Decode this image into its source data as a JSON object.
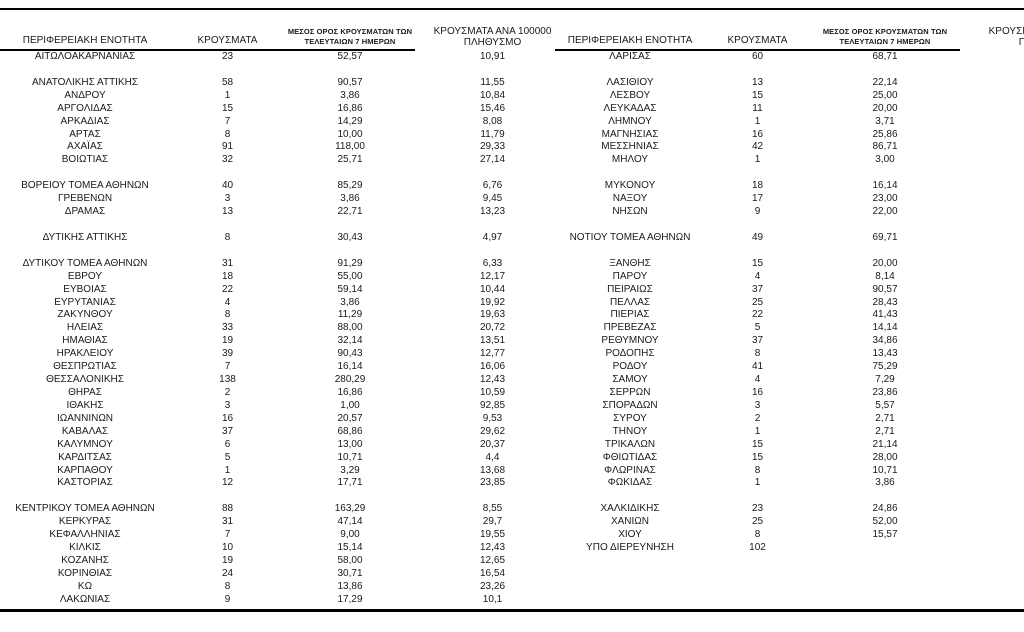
{
  "page": {
    "background": "#ffffff",
    "border_color": "#000000",
    "text_color": "#1a1a1a"
  },
  "headers": {
    "region": "ΠΕΡΙΦΕΡΕΙΑΚΗ ΕΝΟΤΗΤΑ",
    "cases": "ΚΡΟΥΣΜΑΤΑ",
    "avg7_line1": "ΜΕΣΟΣ ΟΡΟΣ ΚΡΟΥΣΜΑΤΩΝ ΤΩΝ",
    "avg7_line2": "ΤΕΛΕΥΤΑΙΩΝ 7 ΗΜΕΡΩΝ",
    "per100k_line1": "ΚΡΟΥΣΜΑΤΑ ΑΝΑ 100000",
    "per100k_line2": "ΠΛΗΘΥΣΜΟ"
  },
  "left_table": {
    "rows": [
      [
        "ΑΙΤΩΛΟΑΚΑΡΝΑΝΙΑΣ",
        "23",
        "52,57",
        "10,91"
      ],
      [
        "",
        "",
        "",
        ""
      ],
      [
        "ΑΝΑΤΟΛΙΚΗΣ ΑΤΤΙΚΗΣ",
        "58",
        "90,57",
        "11,55"
      ],
      [
        "ΑΝΔΡΟΥ",
        "1",
        "3,86",
        "10,84"
      ],
      [
        "ΑΡΓΟΛΙΔΑΣ",
        "15",
        "16,86",
        "15,46"
      ],
      [
        "ΑΡΚΑΔΙΑΣ",
        "7",
        "14,29",
        "8,08"
      ],
      [
        "ΑΡΤΑΣ",
        "8",
        "10,00",
        "11,79"
      ],
      [
        "ΑΧΑΪΑΣ",
        "91",
        "118,00",
        "29,33"
      ],
      [
        "ΒΟΙΩΤΙΑΣ",
        "32",
        "25,71",
        "27,14"
      ],
      [
        "",
        "",
        "",
        ""
      ],
      [
        "ΒΟΡΕΙΟΥ ΤΟΜΕΑ ΑΘΗΝΩΝ",
        "40",
        "85,29",
        "6,76"
      ],
      [
        "ΓΡΕΒΕΝΩΝ",
        "3",
        "3,86",
        "9,45"
      ],
      [
        "ΔΡΑΜΑΣ",
        "13",
        "22,71",
        "13,23"
      ],
      [
        "",
        "",
        "",
        ""
      ],
      [
        "ΔΥΤΙΚΗΣ ΑΤΤΙΚΗΣ",
        "8",
        "30,43",
        "4,97"
      ],
      [
        "",
        "",
        "",
        ""
      ],
      [
        "ΔΥΤΙΚΟΥ ΤΟΜΕΑ ΑΘΗΝΩΝ",
        "31",
        "91,29",
        "6,33"
      ],
      [
        "ΕΒΡΟΥ",
        "18",
        "55,00",
        "12,17"
      ],
      [
        "ΕΥΒΟΙΑΣ",
        "22",
        "59,14",
        "10,44"
      ],
      [
        "ΕΥΡΥΤΑΝΙΑΣ",
        "4",
        "3,86",
        "19,92"
      ],
      [
        "ΖΑΚΥΝΘΟΥ",
        "8",
        "11,29",
        "19,63"
      ],
      [
        "ΗΛΕΙΑΣ",
        "33",
        "88,00",
        "20,72"
      ],
      [
        "ΗΜΑΘΙΑΣ",
        "19",
        "32,14",
        "13,51"
      ],
      [
        "ΗΡΑΚΛΕΙΟΥ",
        "39",
        "90,43",
        "12,77"
      ],
      [
        "ΘΕΣΠΡΩΤΙΑΣ",
        "7",
        "16,14",
        "16,06"
      ],
      [
        "ΘΕΣΣΑΛΟΝΙΚΗΣ",
        "138",
        "280,29",
        "12,43"
      ],
      [
        "ΘΗΡΑΣ",
        "2",
        "16,86",
        "10,59"
      ],
      [
        "ΙΘΑΚΗΣ",
        "3",
        "1,00",
        "92,85"
      ],
      [
        "ΙΩΑΝΝΙΝΩΝ",
        "16",
        "20,57",
        "9,53"
      ],
      [
        "ΚΑΒΑΛΑΣ",
        "37",
        "68,86",
        "29,62"
      ],
      [
        "ΚΑΛΥΜΝΟΥ",
        "6",
        "13,00",
        "20,37"
      ],
      [
        "ΚΑΡΔΙΤΣΑΣ",
        "5",
        "10,71",
        "4,4"
      ],
      [
        "ΚΑΡΠΑΘΟΥ",
        "1",
        "3,29",
        "13,68"
      ],
      [
        "ΚΑΣΤΟΡΙΑΣ",
        "12",
        "17,71",
        "23,85"
      ],
      [
        "",
        "",
        "",
        ""
      ],
      [
        "ΚΕΝΤΡΙΚΟΥ ΤΟΜΕΑ ΑΘΗΝΩΝ",
        "88",
        "163,29",
        "8,55"
      ],
      [
        "ΚΕΡΚΥΡΑΣ",
        "31",
        "47,14",
        "29,7"
      ],
      [
        "ΚΕΦΑΛΛΗΝΙΑΣ",
        "7",
        "9,00",
        "19,55"
      ],
      [
        "ΚΙΛΚΙΣ",
        "10",
        "15,14",
        "12,43"
      ],
      [
        "ΚΟΖΑΝΗΣ",
        "19",
        "58,00",
        "12,65"
      ],
      [
        "ΚΟΡΙΝΘΙΑΣ",
        "24",
        "30,71",
        "16,54"
      ],
      [
        "ΚΩ",
        "8",
        "13,86",
        "23,26"
      ],
      [
        "ΛΑΚΩΝΙΑΣ",
        "9",
        "17,29",
        "10,1"
      ]
    ]
  },
  "right_table": {
    "rows": [
      [
        "ΛΑΡΙΣΑΣ",
        "60",
        "68,71"
      ],
      [
        "",
        "",
        ""
      ],
      [
        "ΛΑΣΙΘΙΟΥ",
        "13",
        "22,14"
      ],
      [
        "ΛΕΣΒΟΥ",
        "15",
        "25,00"
      ],
      [
        "ΛΕΥΚΑΔΑΣ",
        "11",
        "20,00"
      ],
      [
        "ΛΗΜΝΟΥ",
        "1",
        "3,71"
      ],
      [
        "ΜΑΓΝΗΣΙΑΣ",
        "16",
        "25,86"
      ],
      [
        "ΜΕΣΣΗΝΙΑΣ",
        "42",
        "86,71"
      ],
      [
        "ΜΗΛΟΥ",
        "1",
        "3,00"
      ],
      [
        "",
        "",
        ""
      ],
      [
        "ΜΥΚΟΝΟΥ",
        "18",
        "16,14"
      ],
      [
        "ΝΑΞΟΥ",
        "17",
        "23,00"
      ],
      [
        "ΝΗΣΩΝ",
        "9",
        "22,00"
      ],
      [
        "",
        "",
        ""
      ],
      [
        "ΝΟΤΙΟΥ ΤΟΜΕΑ ΑΘΗΝΩΝ",
        "49",
        "69,71"
      ],
      [
        "",
        "",
        ""
      ],
      [
        "ΞΑΝΘΗΣ",
        "15",
        "20,00"
      ],
      [
        "ΠΑΡΟΥ",
        "4",
        "8,14"
      ],
      [
        "ΠΕΙΡΑΙΩΣ",
        "37",
        "90,57"
      ],
      [
        "ΠΕΛΛΑΣ",
        "25",
        "28,43"
      ],
      [
        "ΠΙΕΡΙΑΣ",
        "22",
        "41,43"
      ],
      [
        "ΠΡΕΒΕΖΑΣ",
        "5",
        "14,14"
      ],
      [
        "ΡΕΘΥΜΝΟΥ",
        "37",
        "34,86"
      ],
      [
        "ΡΟΔΟΠΗΣ",
        "8",
        "13,43"
      ],
      [
        "ΡΟΔΟΥ",
        "41",
        "75,29"
      ],
      [
        "ΣΑΜΟΥ",
        "4",
        "7,29"
      ],
      [
        "ΣΕΡΡΩΝ",
        "16",
        "23,86"
      ],
      [
        "ΣΠΟΡΑΔΩΝ",
        "3",
        "5,57"
      ],
      [
        "ΣΥΡΟΥ",
        "2",
        "2,71"
      ],
      [
        "ΤΗΝΟΥ",
        "1",
        "2,71"
      ],
      [
        "ΤΡΙΚΑΛΩΝ",
        "15",
        "21,14"
      ],
      [
        "ΦΘΙΩΤΙΔΑΣ",
        "15",
        "28,00"
      ],
      [
        "ΦΛΩΡΙΝΑΣ",
        "8",
        "10,71"
      ],
      [
        "ΦΩΚΙΔΑΣ",
        "1",
        "3,86"
      ],
      [
        "",
        "",
        ""
      ],
      [
        "ΧΑΛΚΙΔΙΚΗΣ",
        "23",
        "24,86"
      ],
      [
        "ΧΑΝΙΩΝ",
        "25",
        "52,00"
      ],
      [
        "ΧΙΟΥ",
        "8",
        "15,57"
      ],
      [
        "ΥΠΟ ΔΙΕΡΕΥΝΗΣΗ",
        "102",
        ""
      ],
      [
        "",
        "",
        ""
      ],
      [
        "",
        "",
        ""
      ],
      [
        "",
        "",
        ""
      ],
      [
        "",
        "",
        ""
      ]
    ]
  }
}
